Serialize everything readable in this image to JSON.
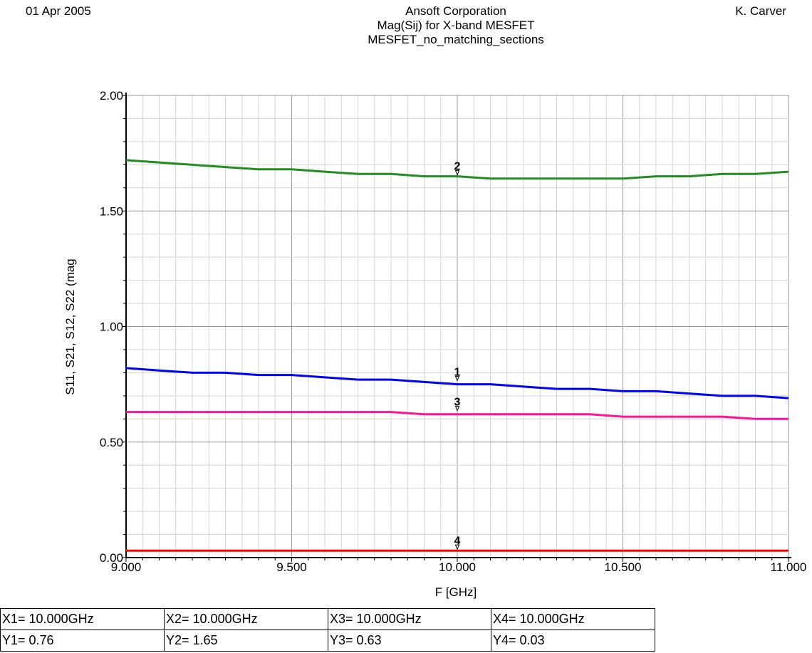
{
  "header": {
    "date": "01 Apr 2005",
    "company": "Ansoft Corporation",
    "title": "Mag(Sij) for X-band MESFET",
    "subtitle": "MESFET_no_matching_sections",
    "author": "K. Carver"
  },
  "chart_data": {
    "type": "line",
    "xlabel": "F [GHz]",
    "ylabel": "S11, S21, S12, S22 (mag",
    "xlim": [
      9.0,
      11.0
    ],
    "ylim": [
      0.0,
      2.0
    ],
    "x_ticks": [
      "9.000",
      "9.500",
      "10.000",
      "10.500",
      "11.000"
    ],
    "y_ticks": [
      "0.00",
      "0.50",
      "1.00",
      "1.50",
      "2.00"
    ],
    "grid": true,
    "x": [
      9.0,
      9.1,
      9.2,
      9.3,
      9.4,
      9.5,
      9.6,
      9.7,
      9.8,
      9.9,
      10.0,
      10.1,
      10.2,
      10.3,
      10.4,
      10.5,
      10.6,
      10.7,
      10.8,
      10.9,
      11.0
    ],
    "series": [
      {
        "color": "#0000ff",
        "values": [
          0.82,
          0.81,
          0.8,
          0.8,
          0.79,
          0.79,
          0.78,
          0.77,
          0.77,
          0.76,
          0.75,
          0.75,
          0.74,
          0.73,
          0.73,
          0.72,
          0.72,
          0.71,
          0.7,
          0.7,
          0.69
        ]
      },
      {
        "color": "#228b22",
        "values": [
          1.72,
          1.71,
          1.7,
          1.69,
          1.68,
          1.68,
          1.67,
          1.66,
          1.66,
          1.65,
          1.65,
          1.64,
          1.64,
          1.64,
          1.64,
          1.64,
          1.65,
          1.65,
          1.66,
          1.66,
          1.67
        ]
      },
      {
        "color": "#ff1493",
        "values": [
          0.63,
          0.63,
          0.63,
          0.63,
          0.63,
          0.63,
          0.63,
          0.63,
          0.63,
          0.62,
          0.62,
          0.62,
          0.62,
          0.62,
          0.62,
          0.61,
          0.61,
          0.61,
          0.61,
          0.6,
          0.6
        ]
      },
      {
        "color": "#ff0000",
        "values": [
          0.03,
          0.03,
          0.03,
          0.03,
          0.03,
          0.03,
          0.03,
          0.03,
          0.03,
          0.03,
          0.03,
          0.03,
          0.03,
          0.03,
          0.03,
          0.03,
          0.03,
          0.03,
          0.03,
          0.03,
          0.03
        ]
      }
    ],
    "markers": [
      {
        "label": "1",
        "x": 10.0,
        "y": 0.76
      },
      {
        "label": "2",
        "x": 10.0,
        "y": 1.65
      },
      {
        "label": "3",
        "x": 10.0,
        "y": 0.63
      },
      {
        "label": "4",
        "x": 10.0,
        "y": 0.03
      }
    ]
  },
  "marker_table": [
    {
      "x_text": "X1= 10.000GHz",
      "y_text": "Y1= 0.76"
    },
    {
      "x_text": "X2= 10.000GHz",
      "y_text": "Y2= 1.65"
    },
    {
      "x_text": "X3= 10.000GHz",
      "y_text": "Y3= 0.63"
    },
    {
      "x_text": "X4= 10.000GHz",
      "y_text": "Y4= 0.03"
    }
  ]
}
